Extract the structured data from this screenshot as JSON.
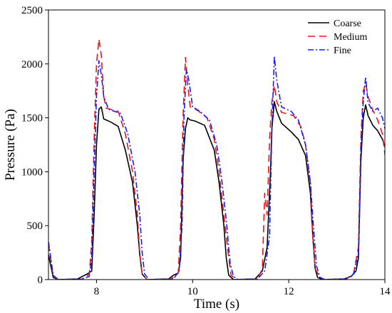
{
  "chart_data": {
    "type": "line",
    "title": "",
    "xlabel": "Time (s)",
    "ylabel": "Pressure (Pa)",
    "xlim": [
      7,
      14
    ],
    "ylim": [
      0,
      2500
    ],
    "xticks": [
      8,
      10,
      12,
      14
    ],
    "yticks": [
      0,
      500,
      1000,
      1500,
      2000,
      2500
    ],
    "grid": false,
    "legend_position": "top-right",
    "series": [
      {
        "name": "Coarse",
        "color": "#000000",
        "dash": "solid",
        "points": [
          [
            7.0,
            230
          ],
          [
            7.1,
            20
          ],
          [
            7.2,
            0
          ],
          [
            7.6,
            5
          ],
          [
            7.8,
            50
          ],
          [
            7.9,
            80
          ],
          [
            7.95,
            600
          ],
          [
            8.0,
            1250
          ],
          [
            8.05,
            1580
          ],
          [
            8.1,
            1600
          ],
          [
            8.15,
            1490
          ],
          [
            8.3,
            1460
          ],
          [
            8.45,
            1420
          ],
          [
            8.6,
            1200
          ],
          [
            8.75,
            900
          ],
          [
            8.85,
            500
          ],
          [
            8.9,
            230
          ],
          [
            8.95,
            50
          ],
          [
            9.05,
            0
          ],
          [
            9.5,
            5
          ],
          [
            9.6,
            40
          ],
          [
            9.7,
            60
          ],
          [
            9.75,
            200
          ],
          [
            9.8,
            1100
          ],
          [
            9.85,
            1400
          ],
          [
            9.9,
            1500
          ],
          [
            9.95,
            1480
          ],
          [
            10.05,
            1470
          ],
          [
            10.25,
            1430
          ],
          [
            10.45,
            1200
          ],
          [
            10.55,
            900
          ],
          [
            10.65,
            500
          ],
          [
            10.7,
            200
          ],
          [
            10.75,
            40
          ],
          [
            10.85,
            0
          ],
          [
            11.3,
            5
          ],
          [
            11.45,
            80
          ],
          [
            11.55,
            300
          ],
          [
            11.62,
            1000
          ],
          [
            11.65,
            1400
          ],
          [
            11.7,
            1650
          ],
          [
            11.75,
            1560
          ],
          [
            11.85,
            1450
          ],
          [
            12.05,
            1370
          ],
          [
            12.2,
            1300
          ],
          [
            12.35,
            1150
          ],
          [
            12.45,
            800
          ],
          [
            12.5,
            400
          ],
          [
            12.55,
            100
          ],
          [
            12.6,
            20
          ],
          [
            12.7,
            0
          ],
          [
            13.15,
            5
          ],
          [
            13.3,
            30
          ],
          [
            13.4,
            80
          ],
          [
            13.45,
            200
          ],
          [
            13.5,
            1100
          ],
          [
            13.55,
            1500
          ],
          [
            13.6,
            1620
          ],
          [
            13.65,
            1520
          ],
          [
            13.75,
            1430
          ],
          [
            13.85,
            1380
          ],
          [
            13.95,
            1300
          ],
          [
            14.0,
            1230
          ]
        ]
      },
      {
        "name": "Medium",
        "color": "#e8141b",
        "dash": "10 6",
        "points": [
          [
            7.0,
            330
          ],
          [
            7.1,
            30
          ],
          [
            7.2,
            0
          ],
          [
            7.7,
            5
          ],
          [
            7.85,
            50
          ],
          [
            7.9,
            350
          ],
          [
            7.95,
            1300
          ],
          [
            8.0,
            2000
          ],
          [
            8.05,
            2230
          ],
          [
            8.1,
            2080
          ],
          [
            8.15,
            1700
          ],
          [
            8.2,
            1590
          ],
          [
            8.45,
            1560
          ],
          [
            8.6,
            1350
          ],
          [
            8.75,
            1000
          ],
          [
            8.85,
            600
          ],
          [
            8.9,
            250
          ],
          [
            8.95,
            50
          ],
          [
            9.05,
            0
          ],
          [
            9.55,
            5
          ],
          [
            9.7,
            60
          ],
          [
            9.75,
            500
          ],
          [
            9.8,
            1500
          ],
          [
            9.85,
            2060
          ],
          [
            9.9,
            1800
          ],
          [
            9.95,
            1600
          ],
          [
            10.1,
            1570
          ],
          [
            10.3,
            1500
          ],
          [
            10.45,
            1300
          ],
          [
            10.55,
            1000
          ],
          [
            10.65,
            600
          ],
          [
            10.75,
            200
          ],
          [
            10.8,
            40
          ],
          [
            10.9,
            0
          ],
          [
            11.35,
            5
          ],
          [
            11.45,
            100
          ],
          [
            11.5,
            800
          ],
          [
            11.55,
            600
          ],
          [
            11.6,
            1300
          ],
          [
            11.65,
            1650
          ],
          [
            11.7,
            1800
          ],
          [
            11.75,
            1650
          ],
          [
            11.85,
            1550
          ],
          [
            12.1,
            1520
          ],
          [
            12.25,
            1420
          ],
          [
            12.35,
            1250
          ],
          [
            12.45,
            900
          ],
          [
            12.5,
            400
          ],
          [
            12.55,
            100
          ],
          [
            12.65,
            20
          ],
          [
            12.75,
            0
          ],
          [
            13.2,
            5
          ],
          [
            13.35,
            60
          ],
          [
            13.45,
            300
          ],
          [
            13.5,
            1300
          ],
          [
            13.55,
            1750
          ],
          [
            13.6,
            1820
          ],
          [
            13.65,
            1700
          ],
          [
            13.75,
            1570
          ],
          [
            13.85,
            1480
          ],
          [
            13.95,
            1350
          ],
          [
            14.0,
            1160
          ]
        ]
      },
      {
        "name": "Fine",
        "color": "#1a1aff",
        "dash": "8 3 2 3",
        "points": [
          [
            7.0,
            350
          ],
          [
            7.1,
            40
          ],
          [
            7.2,
            0
          ],
          [
            7.7,
            5
          ],
          [
            7.85,
            30
          ],
          [
            7.9,
            200
          ],
          [
            7.95,
            1000
          ],
          [
            8.0,
            1700
          ],
          [
            8.05,
            2030
          ],
          [
            8.1,
            1900
          ],
          [
            8.15,
            1700
          ],
          [
            8.25,
            1580
          ],
          [
            8.5,
            1540
          ],
          [
            8.65,
            1350
          ],
          [
            8.8,
            1000
          ],
          [
            8.9,
            600
          ],
          [
            8.95,
            250
          ],
          [
            9.0,
            50
          ],
          [
            9.1,
            0
          ],
          [
            9.6,
            5
          ],
          [
            9.72,
            80
          ],
          [
            9.78,
            500
          ],
          [
            9.82,
            1500
          ],
          [
            9.87,
            1950
          ],
          [
            9.92,
            1850
          ],
          [
            10.0,
            1600
          ],
          [
            10.15,
            1560
          ],
          [
            10.35,
            1480
          ],
          [
            10.5,
            1250
          ],
          [
            10.6,
            950
          ],
          [
            10.7,
            550
          ],
          [
            10.78,
            150
          ],
          [
            10.85,
            30
          ],
          [
            10.95,
            0
          ],
          [
            11.35,
            5
          ],
          [
            11.5,
            80
          ],
          [
            11.6,
            400
          ],
          [
            11.65,
            1400
          ],
          [
            11.7,
            2070
          ],
          [
            11.75,
            1850
          ],
          [
            11.85,
            1600
          ],
          [
            12.05,
            1560
          ],
          [
            12.2,
            1480
          ],
          [
            12.35,
            1250
          ],
          [
            12.45,
            900
          ],
          [
            12.52,
            450
          ],
          [
            12.58,
            120
          ],
          [
            12.65,
            20
          ],
          [
            12.75,
            0
          ],
          [
            13.2,
            5
          ],
          [
            13.35,
            50
          ],
          [
            13.45,
            250
          ],
          [
            13.5,
            1200
          ],
          [
            13.55,
            1650
          ],
          [
            13.6,
            1880
          ],
          [
            13.65,
            1640
          ],
          [
            13.75,
            1560
          ],
          [
            13.85,
            1590
          ],
          [
            13.95,
            1500
          ],
          [
            14.0,
            1400
          ]
        ]
      }
    ]
  }
}
